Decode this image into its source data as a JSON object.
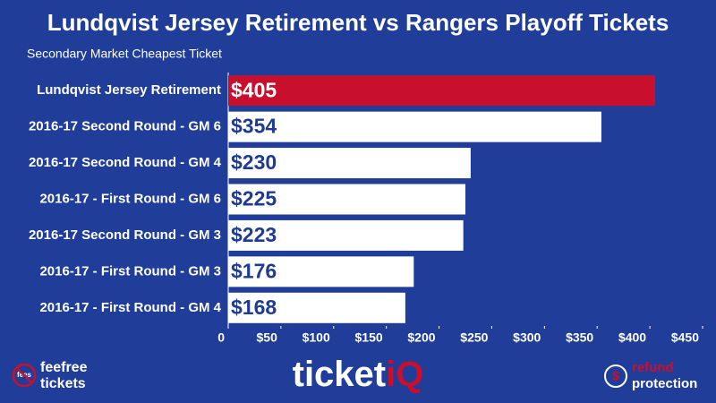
{
  "chart_data": {
    "type": "hbar",
    "title": "Lundqvist Jersey Retirement vs Rangers Playoff Tickets",
    "subtitle": "Secondary Market Cheapest Ticket",
    "categories": [
      "Lundqvist Jersey Retirement",
      "2016-17 Second Round - GM 6",
      "2016-17 Second Round - GM 4",
      "2016-17 - First Round - GM 6",
      "2016-17 Second Round - GM 3",
      "2016-17 - First Round - GM 3",
      "2016-17 - First Round - GM 4"
    ],
    "values": [
      405,
      354,
      230,
      225,
      223,
      176,
      168
    ],
    "value_labels": [
      "$405",
      "$354",
      "$230",
      "$225",
      "$223",
      "$176",
      "$168"
    ],
    "colors": [
      "#c8102e",
      "#ffffff",
      "#ffffff",
      "#ffffff",
      "#ffffff",
      "#ffffff",
      "#ffffff"
    ],
    "value_label_colors": [
      "#ffffff",
      "#1f3a93",
      "#1f3a93",
      "#1f3a93",
      "#1f3a93",
      "#1f3a93",
      "#1f3a93"
    ],
    "xlim": [
      0,
      450
    ],
    "xticks": [
      0,
      {
        "value": 50,
        "label": "$50"
      },
      {
        "value": 100,
        "label": "$100"
      },
      {
        "value": 150,
        "label": "$150"
      },
      {
        "value": 200,
        "label": "$200"
      },
      {
        "value": 250,
        "label": "$250"
      },
      {
        "value": 300,
        "label": "$300"
      },
      {
        "value": 350,
        "label": "$350"
      },
      {
        "value": 400,
        "label": "$400"
      },
      {
        "value": 450,
        "label": "$450"
      }
    ]
  },
  "footer": {
    "left_logo": [
      "fee",
      "free",
      "tickets"
    ],
    "left_badge": "fees",
    "center_logo": [
      "ticket",
      "iQ"
    ],
    "right_logo": [
      "refund",
      "protection"
    ]
  }
}
